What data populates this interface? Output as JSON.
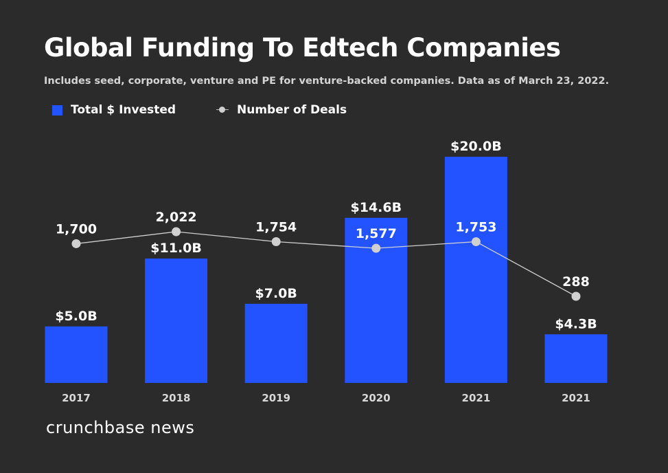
{
  "title": "Global Funding To Edtech Companies",
  "subtitle": "Includes seed, corporate, venture and PE for venture-backed companies. Data as of March 23, 2022.",
  "legend": {
    "bars_label": "Total $ Invested",
    "line_label": "Number of Deals"
  },
  "brand": "crunchbase news",
  "colors": {
    "background": "#2b2b2b",
    "bar": "#2353ff",
    "line": "#d0d0d0",
    "text": "#ffffff"
  },
  "chart_data": {
    "type": "bar",
    "categories": [
      "2017",
      "2018",
      "2019",
      "2020",
      "2021",
      "2021"
    ],
    "series": [
      {
        "name": "Total $ Invested",
        "type": "bar",
        "values": [
          5.0,
          11.0,
          7.0,
          14.6,
          20.0,
          4.3
        ],
        "labels": [
          "$5.0B",
          "$11.0B",
          "$7.0B",
          "$14.6B",
          "$20.0B",
          "$4.3B"
        ]
      },
      {
        "name": "Number of Deals",
        "type": "line",
        "values": [
          1700,
          2022,
          1754,
          1577,
          1753,
          288
        ],
        "labels": [
          "1,700",
          "2,022",
          "1,754",
          "1,577",
          "1,753",
          "288"
        ]
      }
    ],
    "bar_ylim": [
      0,
      20.0
    ],
    "line_ylim": [
      0,
      2022
    ],
    "legend_position": "top-left",
    "grid": false
  }
}
